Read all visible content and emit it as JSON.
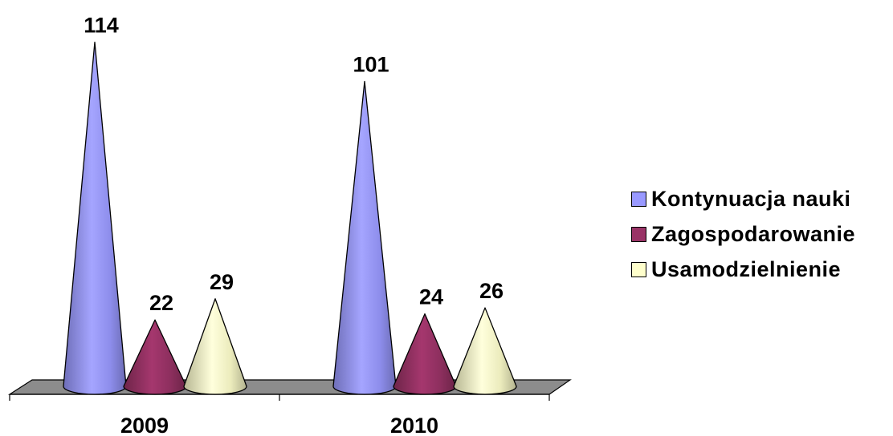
{
  "chart_data": {
    "type": "bar",
    "mark": "cone",
    "title": "",
    "xlabel": "",
    "ylabel": "",
    "categories": [
      "2009",
      "2010"
    ],
    "ylim": [
      0,
      120
    ],
    "grid": false,
    "legend_position": "right",
    "series": [
      {
        "name": "Kontynuacja nauki",
        "values": [
          114,
          101
        ],
        "color": "#9999FF"
      },
      {
        "name": "Zagospodarowanie",
        "values": [
          22,
          24
        ],
        "color": "#993366"
      },
      {
        "name": "Usamodzielnienie",
        "values": [
          29,
          26
        ],
        "color": "#FFFFCC"
      }
    ]
  }
}
